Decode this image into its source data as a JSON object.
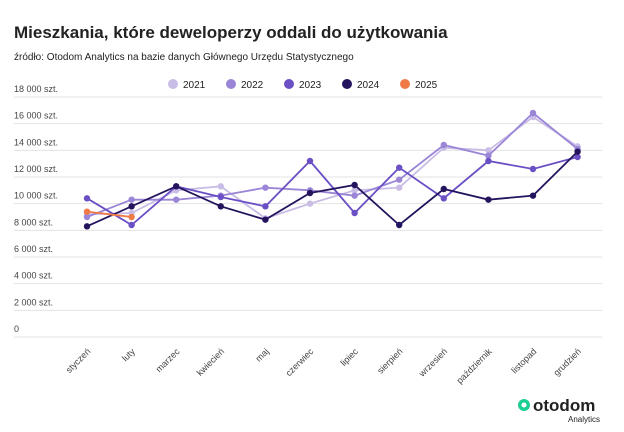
{
  "chart_data": {
    "type": "line",
    "title": "Mieszkania, które deweloperzy oddali do użytkowania",
    "subtitle": "źródło: Otodom Analytics na bazie danych Głównego Urzędu Statystycznego",
    "categories": [
      "styczeń",
      "luty",
      "marzec",
      "kwiecień",
      "maj",
      "czerwiec",
      "lipiec",
      "sierpień",
      "wrzesień",
      "październik",
      "listopad",
      "grudzień"
    ],
    "series": [
      {
        "name": "2021",
        "color": "#c9bde6",
        "values": [
          9200,
          9300,
          11000,
          11300,
          8900,
          10000,
          11000,
          11200,
          14200,
          14000,
          16500,
          14300
        ]
      },
      {
        "name": "2022",
        "color": "#9a85d6",
        "values": [
          9000,
          10300,
          10300,
          10600,
          11200,
          11000,
          10600,
          11800,
          14400,
          13600,
          16800,
          14100
        ]
      },
      {
        "name": "2023",
        "color": "#6b4fc4",
        "values": [
          10400,
          8400,
          11300,
          10500,
          9800,
          13200,
          9300,
          12700,
          10400,
          13200,
          12600,
          13500
        ]
      },
      {
        "name": "2024",
        "color": "#24145e",
        "values": [
          8300,
          9800,
          11300,
          9800,
          8800,
          10800,
          11400,
          8400,
          11100,
          10300,
          10600,
          13900
        ]
      },
      {
        "name": "2025",
        "color": "#f07a45",
        "values": [
          9400,
          9000,
          null,
          null,
          null,
          null,
          null,
          null,
          null,
          null,
          null,
          null
        ]
      }
    ],
    "ylim": [
      0,
      18000
    ],
    "yticks": [
      {
        "value": 0,
        "label": "0"
      },
      {
        "value": 2000,
        "label": "2 000 szt."
      },
      {
        "value": 4000,
        "label": "4 000 szt."
      },
      {
        "value": 6000,
        "label": "6 000 szt."
      },
      {
        "value": 8000,
        "label": "8 000 szt."
      },
      {
        "value": 10000,
        "label": "10 000 szt."
      },
      {
        "value": 12000,
        "label": "12 000 szt."
      },
      {
        "value": 14000,
        "label": "14 000 szt."
      },
      {
        "value": 16000,
        "label": "16 000 szt."
      },
      {
        "value": 18000,
        "label": "18 000 szt."
      }
    ],
    "grid": true,
    "legend": "top"
  },
  "brand": {
    "name": "otodom",
    "sub": "Analytics"
  }
}
